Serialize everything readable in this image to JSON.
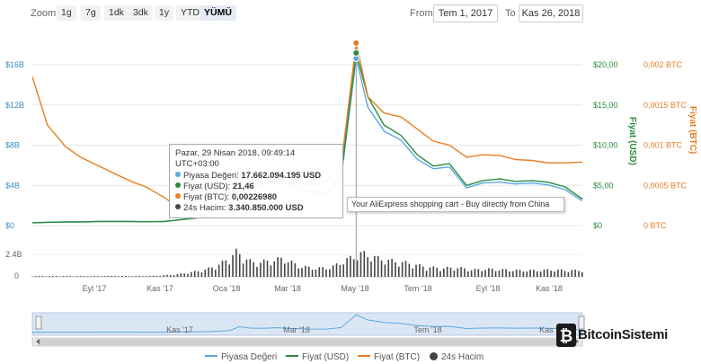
{
  "toolbar": {
    "zoom_label": "Zoom",
    "zoom_buttons": [
      "1g",
      "7g",
      "1dk",
      "3dk",
      "1y",
      "YTD",
      "YÜMÜ"
    ],
    "active_zoom": "YÜMÜ",
    "from_label": "From",
    "from_value": "Tem 1, 2017",
    "to_label": "To",
    "to_value": "Kas 26, 2018"
  },
  "tooltip": {
    "date": "Pazar, 29 Nisan 2018, 09:49:14 UTC+03:00",
    "rows": [
      {
        "label": "Piyasa Değeri:",
        "value": "17.662.094.195 USD",
        "color": "#5aa9e0"
      },
      {
        "label": "Fiyat (USD):",
        "value": "21,46",
        "color": "#2b8a3e"
      },
      {
        "label": "Fiyat (BTC):",
        "value": "0,00226980",
        "color": "#e67e22"
      },
      {
        "label": "24s Hacim:",
        "value": "3.340.850.000 USD",
        "color": "#444444"
      }
    ]
  },
  "ad_tooltip": "Your AliExpress shopping cart - Buy directly from China",
  "legend": [
    {
      "label": "Piyasa Değeri",
      "color": "#5aa9e0",
      "kind": "line"
    },
    {
      "label": "Fiyat (USD)",
      "color": "#2b8a3e",
      "kind": "line"
    },
    {
      "label": "Fiyat (BTC)",
      "color": "#e67e22",
      "kind": "line"
    },
    {
      "label": "24s Hacim",
      "color": "#444444",
      "kind": "dot"
    }
  ],
  "watermark": "BitcoinSistemi",
  "chart_data": {
    "type": "line",
    "x_ticks": [
      "Eyl '17",
      "Kas '17",
      "Oca '18",
      "Mar '18",
      "May '18",
      "Tem '18",
      "Eyl '18",
      "Kas '18"
    ],
    "navigator_ticks": [
      "Kas '17",
      "Mar '18",
      "Tem '18",
      "Kas '18"
    ],
    "x": [
      "2017-07-01",
      "2017-07-15",
      "2017-08-01",
      "2017-08-15",
      "2017-09-01",
      "2017-09-15",
      "2017-10-01",
      "2017-10-15",
      "2017-11-01",
      "2017-11-15",
      "2017-12-01",
      "2017-12-15",
      "2018-01-01",
      "2018-01-10",
      "2018-01-20",
      "2018-02-01",
      "2018-02-15",
      "2018-03-01",
      "2018-03-15",
      "2018-04-01",
      "2018-04-15",
      "2018-04-29",
      "2018-05-10",
      "2018-05-25",
      "2018-06-10",
      "2018-06-25",
      "2018-07-10",
      "2018-07-25",
      "2018-08-10",
      "2018-08-25",
      "2018-09-10",
      "2018-09-25",
      "2018-10-10",
      "2018-10-25",
      "2018-11-10",
      "2018-11-26"
    ],
    "y_left_ticks": [
      "$0",
      "$4B",
      "$8B",
      "$12B",
      "$16B"
    ],
    "y_usd_ticks": [
      "$0",
      "$5,00",
      "$10,00",
      "$15,00",
      "$20,00"
    ],
    "y_btc_ticks": [
      "0 BTC",
      "0,0005 BTC",
      "0,001 BTC",
      "0,0015 BTC",
      "0,002 BTC"
    ],
    "y_usd_label": "Fiyat (USD)",
    "y_btc_label": "Fiyat (BTC)",
    "volume_ticks": [
      "0",
      "2.4B"
    ],
    "series": [
      {
        "name": "Piyasa Değeri",
        "axis": "cap",
        "color": "#5aa9e0",
        "values": [
          0.3,
          0.35,
          0.4,
          0.4,
          0.45,
          0.45,
          0.45,
          0.4,
          0.45,
          0.6,
          0.8,
          1.0,
          2.0,
          5.8,
          4.5,
          4.2,
          4.8,
          4.0,
          3.5,
          3.3,
          5.0,
          17.66,
          12.5,
          10.0,
          9.0,
          7.0,
          6.0,
          6.2,
          4.0,
          4.5,
          4.6,
          4.4,
          4.5,
          4.3,
          3.8,
          2.6
        ]
      },
      {
        "name": "Fiyat (USD)",
        "axis": "usd",
        "color": "#2b8a3e",
        "values": [
          0.35,
          0.4,
          0.45,
          0.45,
          0.5,
          0.5,
          0.5,
          0.48,
          0.5,
          0.7,
          0.95,
          1.2,
          2.4,
          7.3,
          5.6,
          5.2,
          6.0,
          5.0,
          4.4,
          4.1,
          6.3,
          21.46,
          16.0,
          12.5,
          11.2,
          8.8,
          7.4,
          7.7,
          5.0,
          5.6,
          5.8,
          5.5,
          5.6,
          5.4,
          4.8,
          3.3
        ]
      },
      {
        "name": "Fiyat (BTC)",
        "axis": "btc",
        "color": "#e67e22",
        "values": [
          0.00185,
          0.00125,
          0.00098,
          0.00085,
          0.00074,
          0.00065,
          0.00055,
          0.00048,
          0.00035,
          0.00022,
          0.00014,
          0.0001,
          0.00018,
          0.00045,
          0.0005,
          0.0006,
          0.00058,
          0.00052,
          0.0005,
          0.00055,
          0.00075,
          0.00227,
          0.0016,
          0.0014,
          0.00135,
          0.0012,
          0.00105,
          0.001,
          0.00085,
          0.00088,
          0.00087,
          0.00082,
          0.00081,
          0.00078,
          0.00078,
          0.00079
        ]
      }
    ],
    "volume": {
      "axis": "volume",
      "color": "#444444",
      "values": [
        0.1,
        0.12,
        0.1,
        0.1,
        0.1,
        0.12,
        0.12,
        0.1,
        0.15,
        0.3,
        0.6,
        1.0,
        1.8,
        3.5,
        2.0,
        2.2,
        2.6,
        1.5,
        1.2,
        1.3,
        2.4,
        3.34,
        2.6,
        2.2,
        1.9,
        1.4,
        1.2,
        1.3,
        1.0,
        1.1,
        1.0,
        0.9,
        0.9,
        1.0,
        0.9,
        0.9
      ]
    },
    "ylim_cap": [
      0,
      17
    ],
    "ylim_usd": [
      0,
      20
    ],
    "ylim_btc": [
      0,
      0.002
    ],
    "ylim_volume": [
      0,
      4.0
    ],
    "grid": true,
    "legend_position": "bottom"
  }
}
